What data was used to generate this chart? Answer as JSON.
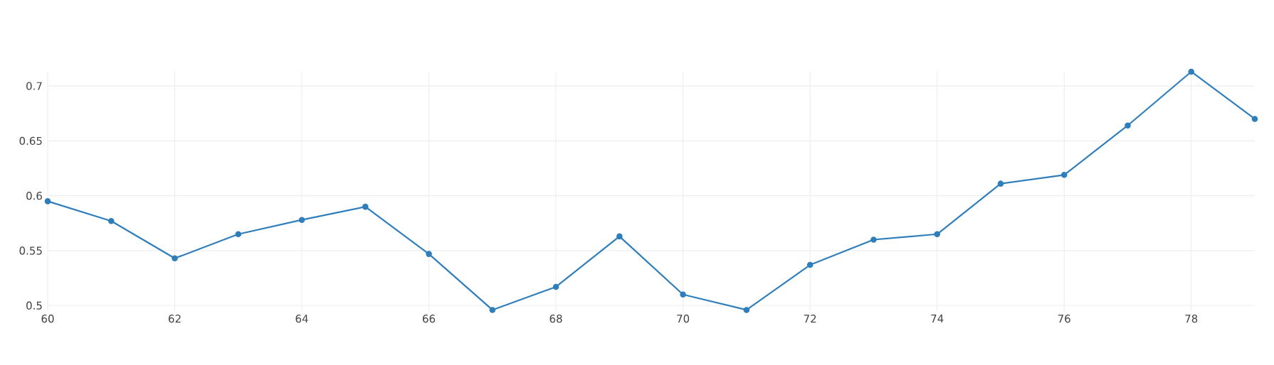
{
  "chart_data": {
    "type": "line",
    "x": [
      60,
      61,
      62,
      63,
      64,
      65,
      66,
      67,
      68,
      69,
      70,
      71,
      72,
      73,
      74,
      75,
      76,
      77,
      78,
      79
    ],
    "series": [
      {
        "color": "#2f7ebc",
        "values": [
          0.595,
          0.577,
          0.543,
          0.565,
          0.578,
          0.59,
          0.547,
          0.496,
          0.517,
          0.563,
          0.51,
          0.496,
          0.537,
          0.56,
          0.565,
          0.611,
          0.619,
          0.664,
          0.713,
          0.67
        ]
      }
    ],
    "xlim": [
      60,
      79
    ],
    "ylim": [
      0.495,
      0.713
    ],
    "xticks": [
      60,
      62,
      64,
      66,
      68,
      70,
      72,
      74,
      76,
      78
    ],
    "yticks": [
      0.5,
      0.55,
      0.6,
      0.65,
      0.7
    ],
    "grid": true,
    "marker": "circle",
    "line_style": "solid"
  }
}
